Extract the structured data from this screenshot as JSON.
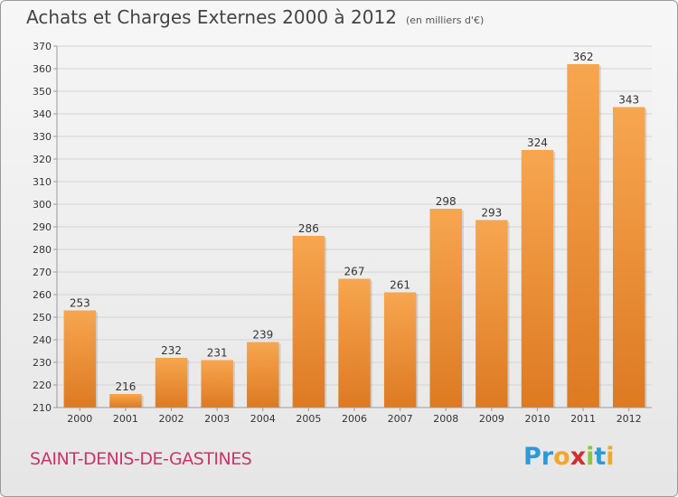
{
  "title": "Achats et Charges Externes 2000 à 2012",
  "unit": "(en milliers d'€)",
  "commune": "SAINT-DENIS-DE-GASTINES",
  "logo": {
    "letters": [
      "P",
      "r",
      "o",
      "x",
      "i",
      "t",
      "i"
    ],
    "colors": [
      "#2b9bd6",
      "#2b9bd6",
      "#f4a62a",
      "#d42d2d",
      "#8cc63f",
      "#2b9bd6",
      "#f4a62a"
    ]
  },
  "colors": {
    "bar_top": "#f7a650",
    "bar_bottom": "#dd7a22",
    "grid": "#d4d4d4",
    "text": "#333333"
  },
  "chart_data": {
    "type": "bar",
    "categories": [
      "2000",
      "2001",
      "2002",
      "2003",
      "2004",
      "2005",
      "2006",
      "2007",
      "2008",
      "2009",
      "2010",
      "2011",
      "2012"
    ],
    "values": [
      253,
      216,
      232,
      231,
      239,
      286,
      267,
      261,
      298,
      293,
      324,
      362,
      343
    ],
    "ylim": [
      210,
      370
    ],
    "yticks": [
      210,
      220,
      230,
      240,
      250,
      260,
      270,
      280,
      290,
      300,
      310,
      320,
      330,
      340,
      350,
      360,
      370
    ],
    "grid": true,
    "data_labels": true
  }
}
